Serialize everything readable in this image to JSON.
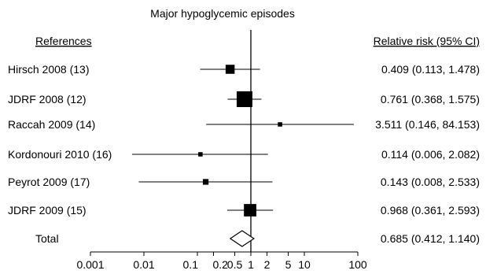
{
  "chart_data": {
    "type": "forest",
    "title": "Major hypoglycemic episodes",
    "left_header": "References",
    "right_header": "Relative risk (95% CI)",
    "x_scale": "log",
    "x_ticks": [
      {
        "value": 0.001,
        "label": "0.001"
      },
      {
        "value": 0.01,
        "label": "0.01"
      },
      {
        "value": 0.1,
        "label": "0.1"
      },
      {
        "value": 0.2,
        "label": "0.2"
      },
      {
        "value": 0.5,
        "label": "0.5"
      },
      {
        "value": 1,
        "label": "1"
      },
      {
        "value": 2,
        "label": "2"
      },
      {
        "value": 5,
        "label": "5"
      },
      {
        "value": 10,
        "label": "10"
      },
      {
        "value": 100,
        "label": "100"
      }
    ],
    "reference_line": 1,
    "rows": [
      {
        "label": "Hirsch 2008 (13)",
        "rr": 0.409,
        "lower": 0.113,
        "upper": 1.478,
        "ci_text": "0.409 (0.113, 1.478)",
        "marker": "square",
        "weight": 0.5
      },
      {
        "label": "JDRF 2008 (12)",
        "rr": 0.761,
        "lower": 0.368,
        "upper": 1.575,
        "ci_text": "0.761 (0.368, 1.575)",
        "marker": "square",
        "weight": 1.0
      },
      {
        "label": "Raccah 2009 (14)",
        "rr": 3.511,
        "lower": 0.146,
        "upper": 84.153,
        "ci_text": "3.511 (0.146, 84.153)",
        "marker": "square",
        "weight": 0.15
      },
      {
        "label": "Kordonouri 2010 (16)",
        "rr": 0.114,
        "lower": 0.006,
        "upper": 2.082,
        "ci_text": "0.114 (0.006, 2.082)",
        "marker": "square",
        "weight": 0.15
      },
      {
        "label": "Peyrot 2009 (17)",
        "rr": 0.143,
        "lower": 0.008,
        "upper": 2.533,
        "ci_text": "0.143 (0.008, 2.533)",
        "marker": "square",
        "weight": 0.25
      },
      {
        "label": "JDRF 2009 (15)",
        "rr": 0.968,
        "lower": 0.361,
        "upper": 2.593,
        "ci_text": "0.968 (0.361, 2.593)",
        "marker": "square",
        "weight": 0.75
      }
    ],
    "total": {
      "label": "Total",
      "rr": 0.685,
      "lower": 0.412,
      "upper": 1.14,
      "ci_text": "0.685 (0.412, 1.140)",
      "marker": "diamond"
    }
  }
}
